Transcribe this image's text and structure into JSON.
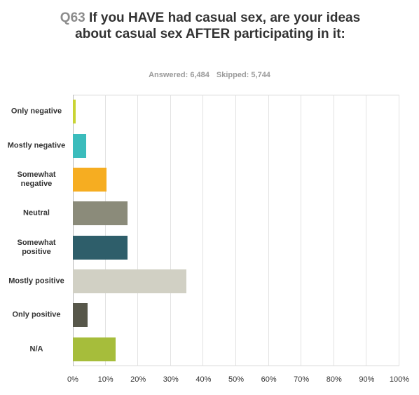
{
  "chart_data": {
    "type": "bar",
    "orientation": "horizontal",
    "question_number": "Q63",
    "title": "If you HAVE had casual sex, are your ideas about casual sex AFTER participating in it:",
    "answered": "Answered: 6,484",
    "skipped": "Skipped: 5,744",
    "categories": [
      "Only negative",
      "Mostly negative",
      "Somewhat negative",
      "Neutral",
      "Somewhat positive",
      "Mostly positive",
      "Only positive",
      "N/A"
    ],
    "values": [
      0.9,
      4,
      10.3,
      16.7,
      16.7,
      34.8,
      4.5,
      13
    ],
    "colors": [
      "#c9d434",
      "#3bbcbc",
      "#f6ad21",
      "#8b8b7a",
      "#2e5e6a",
      "#d1d0c4",
      "#57574a",
      "#a6bd3b"
    ],
    "xlim": [
      0,
      100
    ],
    "xticks": [
      {
        "value": 0,
        "label": "0%"
      },
      {
        "value": 10,
        "label": "10%"
      },
      {
        "value": 20,
        "label": "20%"
      },
      {
        "value": 30,
        "label": "30%"
      },
      {
        "value": 40,
        "label": "40%"
      },
      {
        "value": 50,
        "label": "50%"
      },
      {
        "value": 60,
        "label": "60%"
      },
      {
        "value": 70,
        "label": "70%"
      },
      {
        "value": 80,
        "label": "80%"
      },
      {
        "value": 90,
        "label": "90%"
      },
      {
        "value": 100,
        "label": "100%"
      }
    ],
    "grid": true
  }
}
